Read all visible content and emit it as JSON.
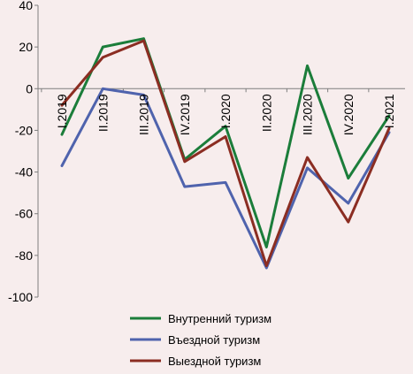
{
  "chart_data": {
    "type": "line",
    "categories": [
      "I.2019",
      "II.2019",
      "III.2019",
      "IV.2019",
      "I.2020",
      "II.2020",
      "III.2020",
      "IV.2020",
      "I.2021"
    ],
    "series": [
      {
        "name": "Внутренний туризм",
        "color": "#1b7d3a",
        "values": [
          -22,
          20,
          24,
          -34,
          -18,
          -76,
          11,
          -43,
          -13
        ]
      },
      {
        "name": "Въездной туризм",
        "color": "#4f63ad",
        "values": [
          -37,
          0,
          -3,
          -47,
          -45,
          -86,
          -38,
          -55,
          -21
        ]
      },
      {
        "name": "Выездной туризм",
        "color": "#8b2d22",
        "values": [
          -8,
          15,
          23,
          -35,
          -23,
          -85,
          -33,
          -64,
          -19
        ]
      }
    ],
    "yticks": [
      40,
      20,
      0,
      -20,
      -40,
      -60,
      -80,
      -100
    ],
    "ylim": [
      -100,
      40
    ],
    "grid": false,
    "legend_position": "bottom-center",
    "title": "",
    "xlabel": "",
    "ylabel": ""
  }
}
